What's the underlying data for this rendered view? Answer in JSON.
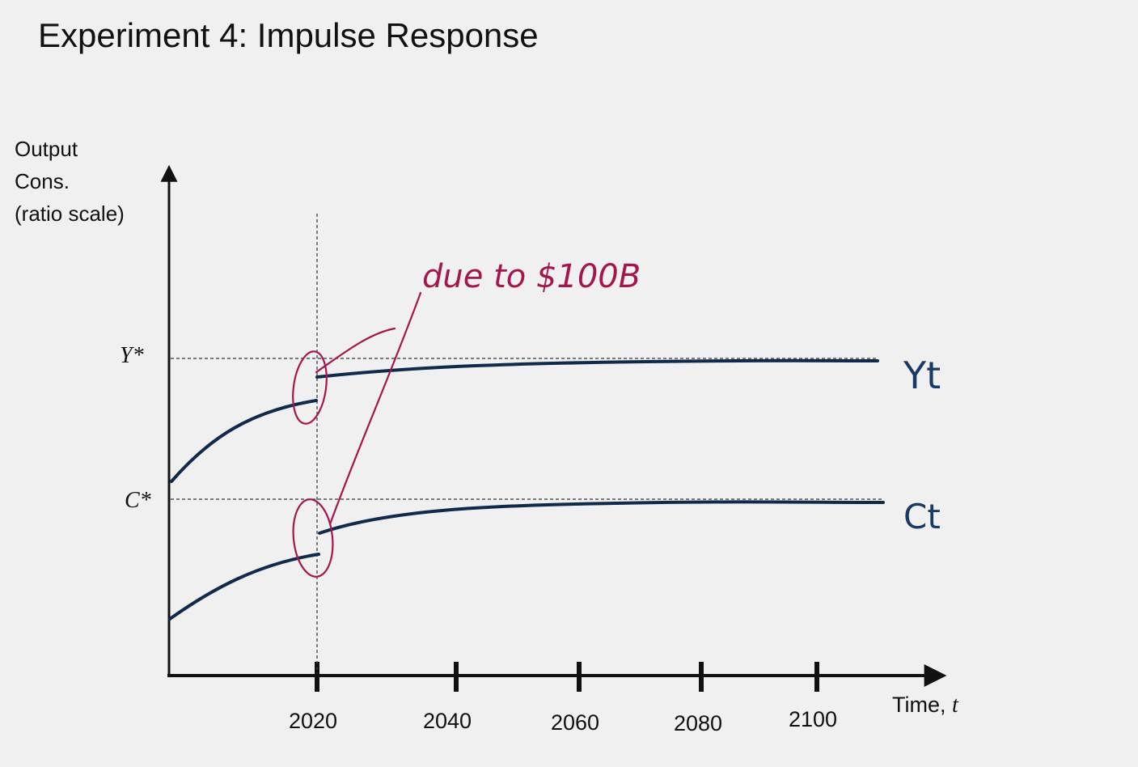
{
  "title": "Experiment 4: Impulse Response",
  "y_axis_label": [
    "Output",
    "Cons.",
    "(ratio scale)"
  ],
  "x_axis_label": {
    "text": "Time, ",
    "var": "t"
  },
  "levels": {
    "y_star": "Y*",
    "c_star": "C*"
  },
  "x_ticks": [
    "2020",
    "2040",
    "2060",
    "2080",
    "2100"
  ],
  "curve_labels": {
    "output": "Yt",
    "consumption": "Ct"
  },
  "annotation": {
    "text": "due to $100B",
    "color": "#a3164e"
  },
  "colors": {
    "curve": "#0f2a4a",
    "axis": "#111111",
    "annotation": "#a3164e"
  }
}
